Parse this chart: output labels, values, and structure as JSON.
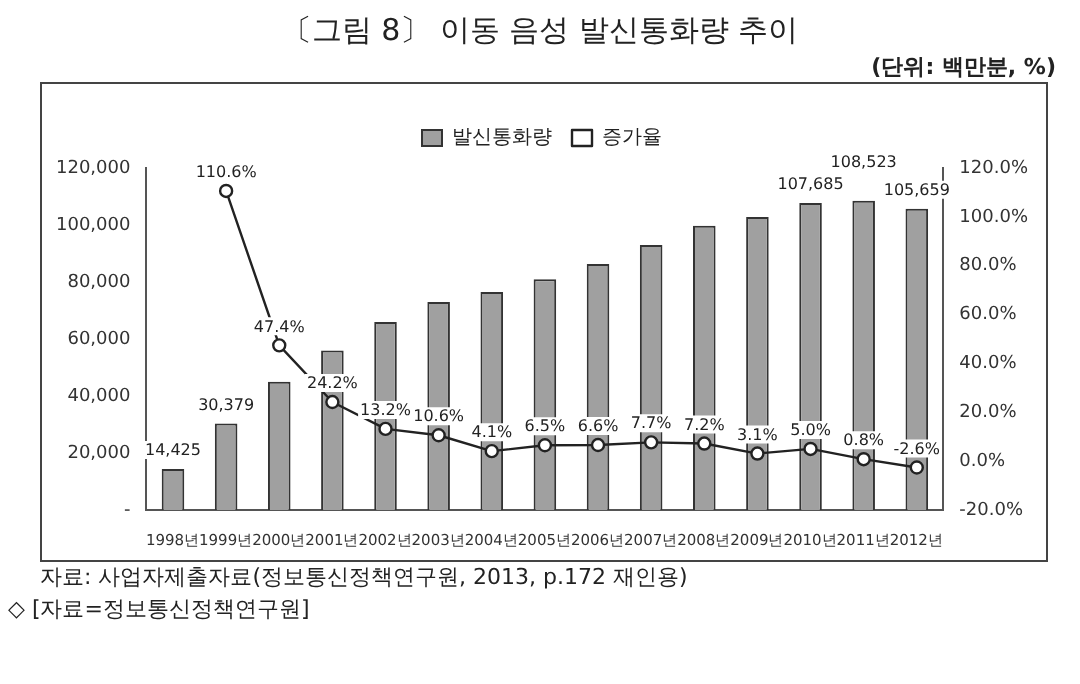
{
  "chart_data": {
    "type": "bar",
    "title": "〔그림 8〕 이동 음성 발신통화량 추이",
    "annotations": [
      "(단위: 백만분, %)",
      "자료: 사업자제출자료(정보통신정책연구원, 2013, p.172 재인용)",
      "◇ [자료=정보통신정책연구원]"
    ],
    "categories": [
      "1998년",
      "1999년",
      "2000년",
      "2001년",
      "2002년",
      "2003년",
      "2004년",
      "2005년",
      "2006년",
      "2007년",
      "2008년",
      "2009년",
      "2010년",
      "2011년",
      "2012년"
    ],
    "series": [
      {
        "name": "발신통화량",
        "color": "#a0a0a0",
        "values": [
          14425,
          30379,
          45000,
          56000,
          66000,
          73000,
          76500,
          81000,
          86300,
          93000,
          99700,
          102800,
          107685,
          108523,
          105659
        ],
        "value_labels": [
          "14,425",
          "30,379",
          null,
          null,
          null,
          null,
          null,
          null,
          null,
          null,
          null,
          null,
          "107,685",
          "108,523",
          "105,659"
        ]
      },
      {
        "name": "증가율",
        "type": "line",
        "axis": "y2",
        "color": "#222222",
        "marker": "circle",
        "values": [
          null,
          110.6,
          47.4,
          24.2,
          13.2,
          10.6,
          4.1,
          6.5,
          6.6,
          7.7,
          7.2,
          3.1,
          5.0,
          0.8,
          -2.6
        ],
        "value_labels": [
          null,
          "110.6%",
          "47.4%",
          "24.2%",
          "13.2%",
          "10.6%",
          "4.1%",
          "6.5%",
          "6.6%",
          "7.7%",
          "7.2%",
          "3.1%",
          "5.0%",
          "0.8%",
          "-2.6%"
        ]
      }
    ],
    "ylim": [
      0,
      120000
    ],
    "yticks": [
      {
        "value": 0,
        "label": "-"
      },
      {
        "value": 20000,
        "label": "20,000"
      },
      {
        "value": 40000,
        "label": "40,000"
      },
      {
        "value": 60000,
        "label": "60,000"
      },
      {
        "value": 80000,
        "label": "80,000"
      },
      {
        "value": 100000,
        "label": "100,000"
      },
      {
        "value": 120000,
        "label": "120,000"
      }
    ],
    "y2lim": [
      -20,
      120
    ],
    "y2ticks": [
      {
        "value": -20,
        "label": "-20.0%"
      },
      {
        "value": 0,
        "label": "0.0%"
      },
      {
        "value": 20,
        "label": "20.0%"
      },
      {
        "value": 40,
        "label": "40.0%"
      },
      {
        "value": 60,
        "label": "60.0%"
      },
      {
        "value": 80,
        "label": "80.0%"
      },
      {
        "value": 100,
        "label": "100.0%"
      },
      {
        "value": 120,
        "label": "120.0%"
      }
    ],
    "grid": false,
    "legend": "top"
  }
}
